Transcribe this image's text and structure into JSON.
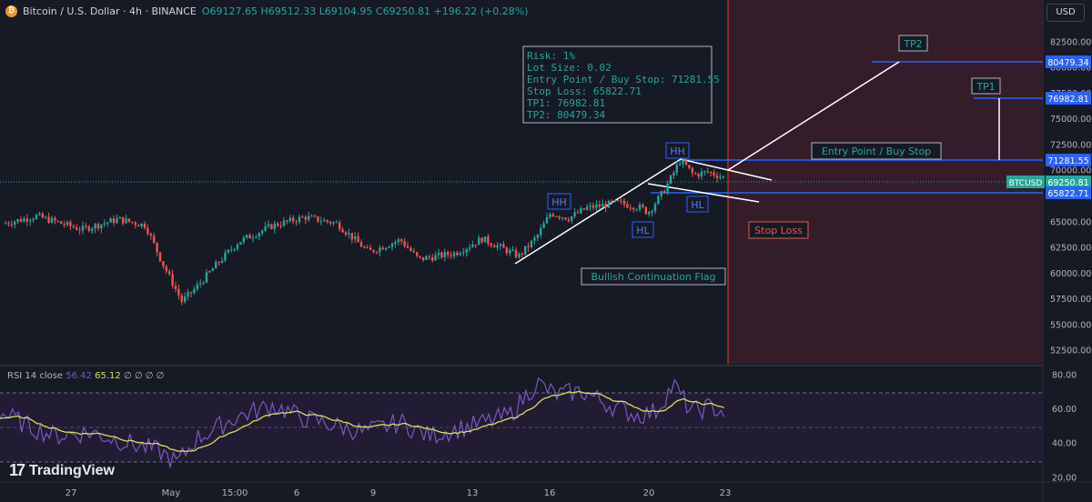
{
  "header": {
    "symbol": "Bitcoin / U.S. Dollar · 4h · BINANCE",
    "ohlc": "O69127.65 H69512.33 L69104.95 C69250.81 +196.22 (+0.28%)",
    "coin_glyph": "₿"
  },
  "currency_button": "USD",
  "price_axis": {
    "ticks": [
      "82500.00",
      "80000.00",
      "77500.00",
      "75000.00",
      "72500.00",
      "70000.00",
      "67500.00",
      "65000.00",
      "62500.00",
      "60000.00",
      "57500.00",
      "55000.00",
      "52500.00"
    ],
    "tick_values": [
      82500,
      80000,
      77500,
      75000,
      72500,
      70000,
      67500,
      65000,
      62500,
      60000,
      57500,
      55000,
      52500
    ],
    "price_range": [
      51500,
      85800
    ]
  },
  "rsi_axis": {
    "ticks": [
      "80.00",
      "60.00",
      "40.00",
      "20.00"
    ],
    "tick_values": [
      80,
      60,
      40,
      20
    ],
    "range": [
      17,
      84
    ]
  },
  "time_axis": {
    "ticks": [
      "27",
      "May",
      "15:00",
      "6",
      "9",
      "13",
      "16",
      "20",
      "23"
    ]
  },
  "price_tags": [
    {
      "name": "tp2-price-tag",
      "text": "80479.34",
      "value": 80479.34,
      "color": "#2962ff"
    },
    {
      "name": "tp1-price-tag",
      "text": "76982.81",
      "value": 76982.81,
      "color": "#2962ff"
    },
    {
      "name": "entry-price-tag",
      "text": "71281.55",
      "value": 71281.55,
      "color": "#2962ff"
    },
    {
      "name": "stop-loss-price-tag",
      "text": "65822.71",
      "value": 65822.71,
      "color": "#2962ff"
    }
  ],
  "last_price": {
    "symbol": "BTCUSD",
    "value": "69250.81",
    "price": 69250.81
  },
  "trade_box": {
    "lines": [
      "Risk: 1%",
      "Lot Size: 0.02",
      "Entry Point / Buy Stop: 71281.55",
      "Stop Loss: 65822.71",
      "TP1: 76982.81",
      "TP2: 80479.34"
    ]
  },
  "labels": {
    "tp2": "TP2",
    "tp1": "TP1",
    "entry": "Entry Point / Buy Stop",
    "stop": "Stop Loss",
    "pattern": "Bullish Continuation Flag",
    "hh": "HH",
    "hl": "HL"
  },
  "rsi": {
    "label": "RSI 14 close",
    "value": "56.42",
    "ma_value": "65.12",
    "extras": "∅ ∅ ∅ ∅",
    "upper_band": 70,
    "mid_band": 50,
    "lower_band": 30
  },
  "brand": "TradingView",
  "colors": {
    "background": "#161a25",
    "up": "#26a69a",
    "down": "#ef5350",
    "level_line": "#2962ff",
    "stop_zone": "#3a1e28",
    "rsi_line": "#7e57c2",
    "rsi_ma": "#d4e157",
    "annotation_text": "#26a69a",
    "stop_text": "#ef5350"
  }
}
